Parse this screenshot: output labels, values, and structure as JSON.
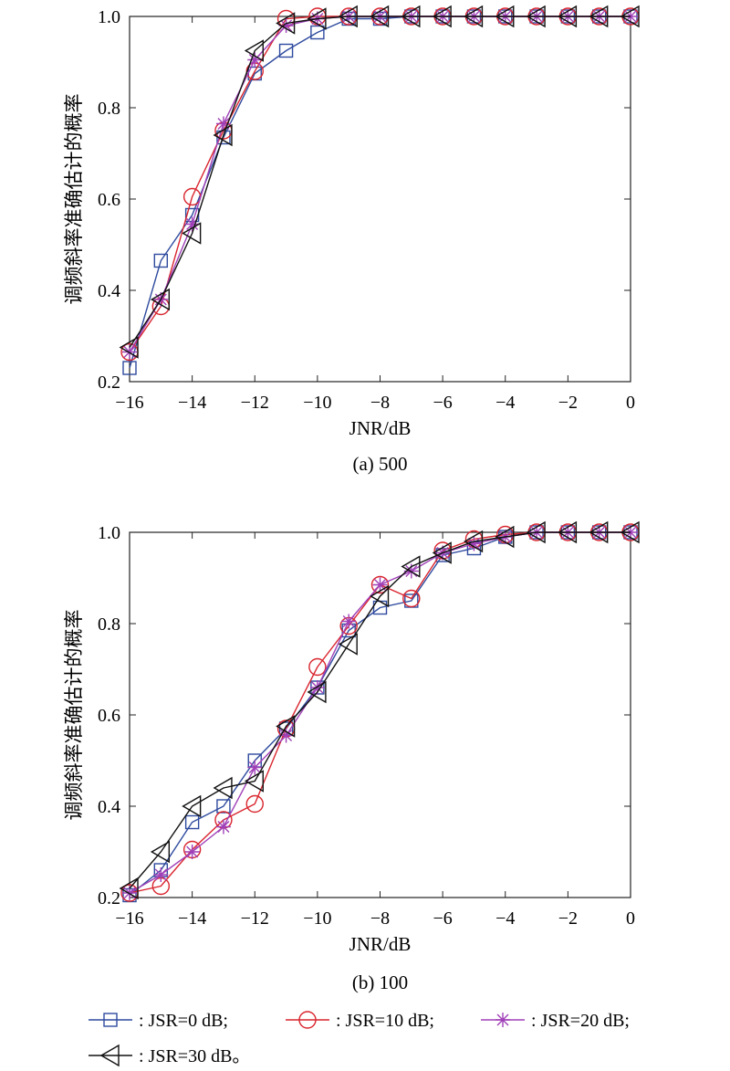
{
  "legend": [
    {
      "series": 0,
      "text": ": JSR=0 dB;"
    },
    {
      "series": 1,
      "text": ": JSR=10 dB;"
    },
    {
      "series": 2,
      "text": ": JSR=20 dB;"
    },
    {
      "series": 3,
      "text": ": JSR=30 dB。"
    }
  ],
  "series_style": [
    {
      "color": "#2e4a9e",
      "marker": "square"
    },
    {
      "color": "#d9252e",
      "marker": "circle"
    },
    {
      "color": "#a040b8",
      "marker": "star"
    },
    {
      "color": "#111111",
      "marker": "triangle-left"
    }
  ],
  "chart_data": [
    {
      "type": "line",
      "title": "(a) 500",
      "xlabel": "JNR/dB",
      "ylabel": "调频斜率准确估计的概率",
      "xlim": [
        -16,
        0
      ],
      "ylim": [
        0.2,
        1.0
      ],
      "xticks": [
        "−16",
        "−14",
        "−12",
        "−10",
        "−8",
        "−6",
        "−4",
        "−2",
        "0"
      ],
      "yticks": [
        "0.2",
        "0.4",
        "0.6",
        "0.8",
        "1.0"
      ],
      "x": [
        -16,
        -15,
        -14,
        -13,
        -12,
        -11,
        -10,
        -9,
        -8,
        -7,
        -6,
        -5,
        -4,
        -3,
        -2,
        -1,
        0
      ],
      "series": [
        {
          "name": "JSR=0 dB",
          "values": [
            0.23,
            0.465,
            0.565,
            0.735,
            0.875,
            0.925,
            0.965,
            0.995,
            0.995,
            1.0,
            1.0,
            1.0,
            1.0,
            1.0,
            1.0,
            1.0,
            1.0
          ]
        },
        {
          "name": "JSR=10 dB",
          "values": [
            0.265,
            0.365,
            0.605,
            0.75,
            0.88,
            0.995,
            1.0,
            1.0,
            1.0,
            1.0,
            1.0,
            1.0,
            1.0,
            1.0,
            1.0,
            1.0,
            1.0
          ]
        },
        {
          "name": "JSR=20 dB",
          "values": [
            0.265,
            0.38,
            0.545,
            0.765,
            0.905,
            0.98,
            0.995,
            1.0,
            1.0,
            1.0,
            1.0,
            1.0,
            1.0,
            1.0,
            1.0,
            1.0,
            1.0
          ]
        },
        {
          "name": "JSR=30 dB",
          "values": [
            0.275,
            0.38,
            0.525,
            0.74,
            0.925,
            0.985,
            0.995,
            1.0,
            1.0,
            1.0,
            1.0,
            1.0,
            1.0,
            1.0,
            1.0,
            1.0,
            1.0
          ]
        }
      ]
    },
    {
      "type": "line",
      "title": "(b) 100",
      "xlabel": "JNR/dB",
      "ylabel": "调频斜率准确估计的概率",
      "xlim": [
        -16,
        0
      ],
      "ylim": [
        0.2,
        1.0
      ],
      "xticks": [
        "−16",
        "−14",
        "−12",
        "−10",
        "−8",
        "−6",
        "−4",
        "−2",
        "0"
      ],
      "yticks": [
        "0.2",
        "0.4",
        "0.6",
        "0.8",
        "1.0"
      ],
      "x": [
        -16,
        -15,
        -14,
        -13,
        -12,
        -11,
        -10,
        -9,
        -8,
        -7,
        -6,
        -5,
        -4,
        -3,
        -2,
        -1,
        0
      ],
      "series": [
        {
          "name": "JSR=0 dB",
          "values": [
            0.205,
            0.26,
            0.365,
            0.4,
            0.5,
            0.57,
            0.66,
            0.785,
            0.835,
            0.85,
            0.95,
            0.965,
            0.99,
            1.0,
            1.0,
            1.0,
            1.0
          ]
        },
        {
          "name": "JSR=10 dB",
          "values": [
            0.21,
            0.225,
            0.305,
            0.37,
            0.405,
            0.57,
            0.705,
            0.795,
            0.885,
            0.855,
            0.96,
            0.985,
            0.995,
            1.0,
            1.0,
            1.0,
            1.0
          ]
        },
        {
          "name": "JSR=20 dB",
          "values": [
            0.21,
            0.25,
            0.3,
            0.355,
            0.485,
            0.555,
            0.66,
            0.805,
            0.885,
            0.915,
            0.955,
            0.975,
            0.99,
            1.0,
            1.0,
            1.0,
            1.0
          ]
        },
        {
          "name": "JSR=30 dB",
          "values": [
            0.22,
            0.3,
            0.4,
            0.44,
            0.455,
            0.575,
            0.65,
            0.755,
            0.86,
            0.925,
            0.955,
            0.98,
            0.99,
            1.0,
            1.0,
            1.0,
            1.0
          ]
        }
      ]
    }
  ]
}
